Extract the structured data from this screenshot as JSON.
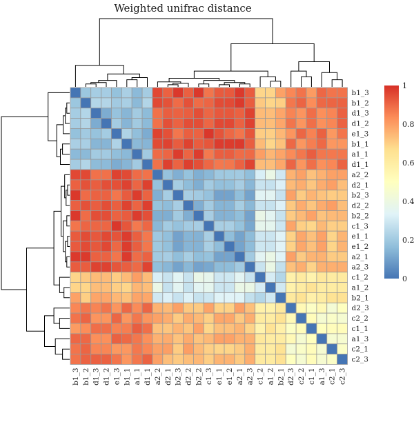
{
  "chart_data": {
    "type": "heatmap",
    "title": "Weighted unifrac distance",
    "rows": [
      "b1_3",
      "b1_2",
      "d1_3",
      "d1_2",
      "e1_3",
      "b1_1",
      "a1_1",
      "d1_1",
      "a2_2",
      "d2_1",
      "b2_3",
      "d2_2",
      "b2_2",
      "c1_3",
      "e1_1",
      "e1_2",
      "a2_1",
      "a2_3",
      "c1_2",
      "a1_2",
      "b2_1",
      "d2_3",
      "c2_2",
      "c1_1",
      "a1_3",
      "c2_1",
      "c2_3"
    ],
    "columns": [
      "b1_3",
      "b1_2",
      "d1_3",
      "d1_2",
      "e1_3",
      "b1_1",
      "a1_1",
      "d1_1",
      "a2_2",
      "d2_1",
      "b2_3",
      "d2_2",
      "b2_2",
      "c1_3",
      "e1_1",
      "e1_2",
      "a2_1",
      "a2_3",
      "c1_2",
      "a1_2",
      "b2_1",
      "d2_3",
      "c2_2",
      "c1_1",
      "a1_3",
      "c2_1",
      "c2_3"
    ],
    "groups": [
      {
        "members": [
          "b1_3",
          "b1_2",
          "d1_3",
          "d1_2",
          "e1_3",
          "b1_1",
          "a1_1",
          "d1_1"
        ]
      },
      {
        "members": [
          "a2_2",
          "d2_1",
          "b2_3",
          "d2_2",
          "b2_2",
          "c1_3",
          "e1_1",
          "e1_2",
          "a2_1",
          "a2_3"
        ]
      },
      {
        "members": [
          "c1_2",
          "a1_2",
          "b2_1"
        ]
      },
      {
        "members": [
          "d2_3",
          "c2_2",
          "c1_1",
          "a1_3",
          "c2_1",
          "c2_3"
        ]
      }
    ],
    "within_group_distance": [
      0.18,
      0.16,
      0.28,
      0.5
    ],
    "between_group_distance": [
      [
        null,
        0.93,
        0.74,
        0.86
      ],
      [
        0.93,
        null,
        0.33,
        0.74
      ],
      [
        0.74,
        0.33,
        null,
        0.62
      ],
      [
        0.86,
        0.74,
        0.62,
        null
      ]
    ],
    "diagonal": 0,
    "colorbar": {
      "ticks": [
        0,
        0.2,
        0.4,
        0.6,
        0.8,
        1
      ],
      "tick_labels": [
        "0",
        "0.2",
        "0.4",
        "0.6",
        "0.8",
        "1"
      ],
      "colors": [
        "#4575b4",
        "#91bfdb",
        "#e0f3f8",
        "#ffffbf",
        "#fee090",
        "#fc8d59",
        "#d73027"
      ]
    },
    "dendrogram": {
      "rows": true,
      "columns": true
    },
    "cell_border_color": "#999999"
  }
}
